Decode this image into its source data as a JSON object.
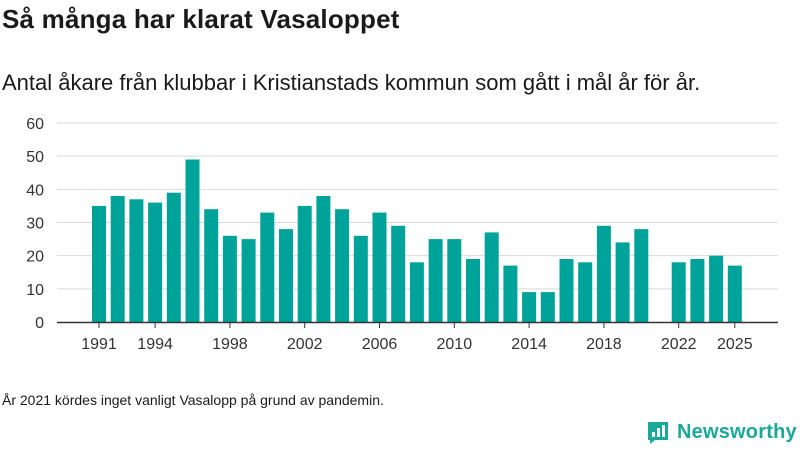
{
  "title": "Så många har klarat Vasaloppet",
  "subtitle": "Antal åkare från klubbar i Kristianstads kommun som gått i mål år för år.",
  "footnote": "År 2021 kördes inget vanligt Vasalopp på grund av pandemin.",
  "brand": {
    "name": "Newsworthy",
    "icon": "newsworthy-logo-icon",
    "color": "#1aa89a"
  },
  "colors": {
    "bar": "#00a39a",
    "grid": "#d9d9d9",
    "axis": "#333333"
  },
  "chart_data": {
    "type": "bar",
    "title": "Så många har klarat Vasaloppet",
    "xlabel": "",
    "ylabel": "",
    "ylim": [
      0,
      60
    ],
    "yticks": [
      0,
      10,
      20,
      30,
      40,
      50,
      60
    ],
    "xticks": [
      1991,
      1994,
      1998,
      2002,
      2006,
      2010,
      2014,
      2018,
      2022,
      2025
    ],
    "grid": true,
    "categories": [
      1991,
      1992,
      1993,
      1994,
      1995,
      1996,
      1997,
      1998,
      1999,
      2000,
      2001,
      2002,
      2003,
      2004,
      2005,
      2006,
      2007,
      2008,
      2009,
      2010,
      2011,
      2012,
      2013,
      2014,
      2015,
      2016,
      2017,
      2018,
      2019,
      2020,
      2021,
      2022,
      2023,
      2024,
      2025
    ],
    "values": [
      35,
      38,
      37,
      36,
      39,
      49,
      34,
      26,
      25,
      33,
      28,
      35,
      38,
      34,
      26,
      33,
      29,
      18,
      25,
      25,
      19,
      27,
      17,
      9,
      9,
      19,
      18,
      29,
      24,
      28,
      null,
      18,
      19,
      20,
      17
    ]
  }
}
